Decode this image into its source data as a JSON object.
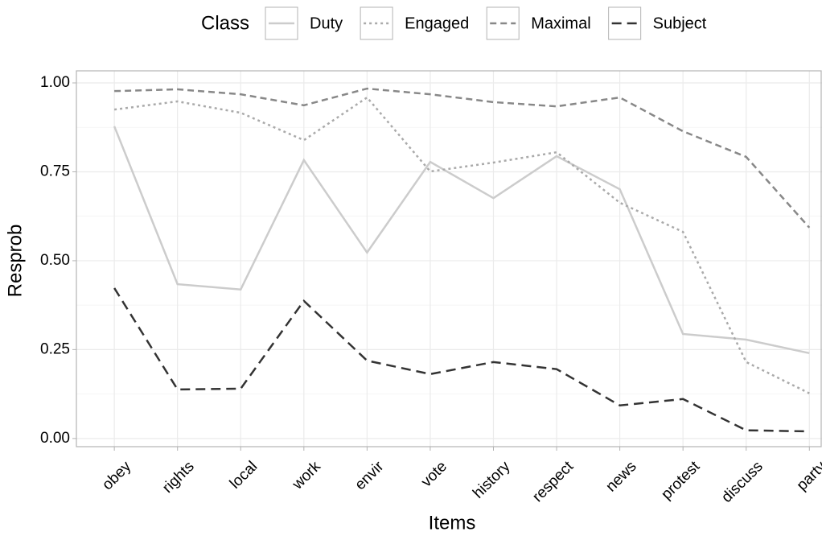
{
  "chart_data": {
    "type": "line",
    "x_label": "Items",
    "y_label": "Resprob",
    "legend_title": "Class",
    "legend_position": "top",
    "categories": [
      "obey",
      "rights",
      "local",
      "work",
      "envir",
      "vote",
      "history",
      "respect",
      "news",
      "protest",
      "discuss",
      "party"
    ],
    "series": [
      {
        "name": "Duty",
        "color": "#cccccc",
        "dash": "solid",
        "values": [
          0.878,
          0.434,
          0.419,
          0.783,
          0.523,
          0.778,
          0.676,
          0.794,
          0.701,
          0.294,
          0.278,
          0.24
        ]
      },
      {
        "name": "Engaged",
        "color": "#aaaaaa",
        "dash": "dotted",
        "values": [
          0.925,
          0.948,
          0.916,
          0.839,
          0.959,
          0.751,
          0.776,
          0.805,
          0.663,
          0.581,
          0.215,
          0.127
        ]
      },
      {
        "name": "Maximal",
        "color": "#888888",
        "dash": "dashed",
        "values": [
          0.977,
          0.982,
          0.968,
          0.937,
          0.984,
          0.968,
          0.946,
          0.934,
          0.959,
          0.864,
          0.792,
          0.593
        ]
      },
      {
        "name": "Subject",
        "color": "#333333",
        "dash": "longdash",
        "values": [
          0.423,
          0.138,
          0.14,
          0.387,
          0.219,
          0.181,
          0.215,
          0.195,
          0.093,
          0.111,
          0.023,
          0.02
        ]
      }
    ],
    "ylim": [
      -0.023,
      1.034
    ],
    "yticks": [
      {
        "value": 0,
        "label": "0.00"
      },
      {
        "value": 0.25,
        "label": "0.25"
      },
      {
        "value": 0.5,
        "label": "0.50"
      },
      {
        "value": 0.75,
        "label": "0.75"
      },
      {
        "value": 1,
        "label": "1.00"
      }
    ],
    "grid": true
  }
}
